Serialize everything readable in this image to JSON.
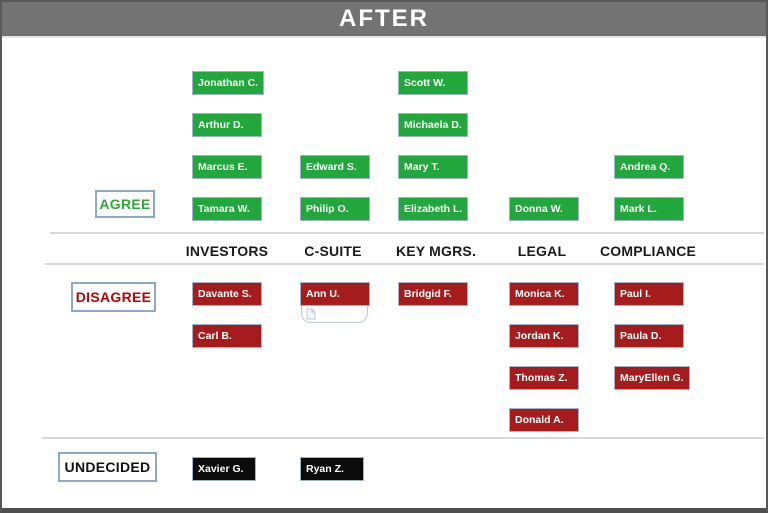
{
  "title": "AFTER",
  "columns": [
    "INVESTORS",
    "C-SUITE",
    "KEY MGRS.",
    "LEGAL",
    "COMPLIANCE"
  ],
  "groups": {
    "agree": {
      "label": "AGREE"
    },
    "disagree": {
      "label": "DISAGREE"
    },
    "undecided": {
      "label": "UNDECIDED"
    }
  },
  "people": [
    {
      "name": "Jonathan C.",
      "group": "agree",
      "column": 0,
      "row": 0
    },
    {
      "name": "Arthur D.",
      "group": "agree",
      "column": 0,
      "row": 1
    },
    {
      "name": "Marcus E.",
      "group": "agree",
      "column": 0,
      "row": 2
    },
    {
      "name": "Tamara W.",
      "group": "agree",
      "column": 0,
      "row": 3
    },
    {
      "name": "Edward S.",
      "group": "agree",
      "column": 1,
      "row": 2
    },
    {
      "name": "Philip O.",
      "group": "agree",
      "column": 1,
      "row": 3
    },
    {
      "name": "Scott W.",
      "group": "agree",
      "column": 2,
      "row": 0
    },
    {
      "name": "Michaela D.",
      "group": "agree",
      "column": 2,
      "row": 1
    },
    {
      "name": "Mary T.",
      "group": "agree",
      "column": 2,
      "row": 2
    },
    {
      "name": "Elizabeth L.",
      "group": "agree",
      "column": 2,
      "row": 3
    },
    {
      "name": "Donna W.",
      "group": "agree",
      "column": 3,
      "row": 3
    },
    {
      "name": "Andrea Q.",
      "group": "agree",
      "column": 4,
      "row": 2
    },
    {
      "name": "Mark L.",
      "group": "agree",
      "column": 4,
      "row": 3
    },
    {
      "name": "Davante S.",
      "group": "disagree",
      "column": 0,
      "row": 0
    },
    {
      "name": "Carl B.",
      "group": "disagree",
      "column": 0,
      "row": 1
    },
    {
      "name": "Ann U.",
      "group": "disagree",
      "column": 1,
      "row": 0,
      "note": true
    },
    {
      "name": "Bridgid F.",
      "group": "disagree",
      "column": 2,
      "row": 0
    },
    {
      "name": "Monica K.",
      "group": "disagree",
      "column": 3,
      "row": 0
    },
    {
      "name": "Jordan K.",
      "group": "disagree",
      "column": 3,
      "row": 1
    },
    {
      "name": "Thomas Z.",
      "group": "disagree",
      "column": 3,
      "row": 2
    },
    {
      "name": "Donald A.",
      "group": "disagree",
      "column": 3,
      "row": 3
    },
    {
      "name": "Paul I.",
      "group": "disagree",
      "column": 4,
      "row": 0
    },
    {
      "name": "Paula D.",
      "group": "disagree",
      "column": 4,
      "row": 1
    },
    {
      "name": "MaryEllen G.",
      "group": "disagree",
      "column": 4,
      "row": 2
    },
    {
      "name": "Xavier G.",
      "group": "undecided",
      "column": 0,
      "row": 0
    },
    {
      "name": "Ryan Z.",
      "group": "undecided",
      "column": 1,
      "row": 0
    }
  ],
  "icons": {
    "note_icon": "page-icon"
  },
  "colors": {
    "title_bar": "#737373",
    "agree": "#21a73c",
    "disagree": "#a61c1c",
    "undecided": "#0b0b0b",
    "agree_label": "#2ea836",
    "disagree_label": "#c00000",
    "box_border": "#9fb5cc",
    "divider_line": "#d9d9d9"
  }
}
